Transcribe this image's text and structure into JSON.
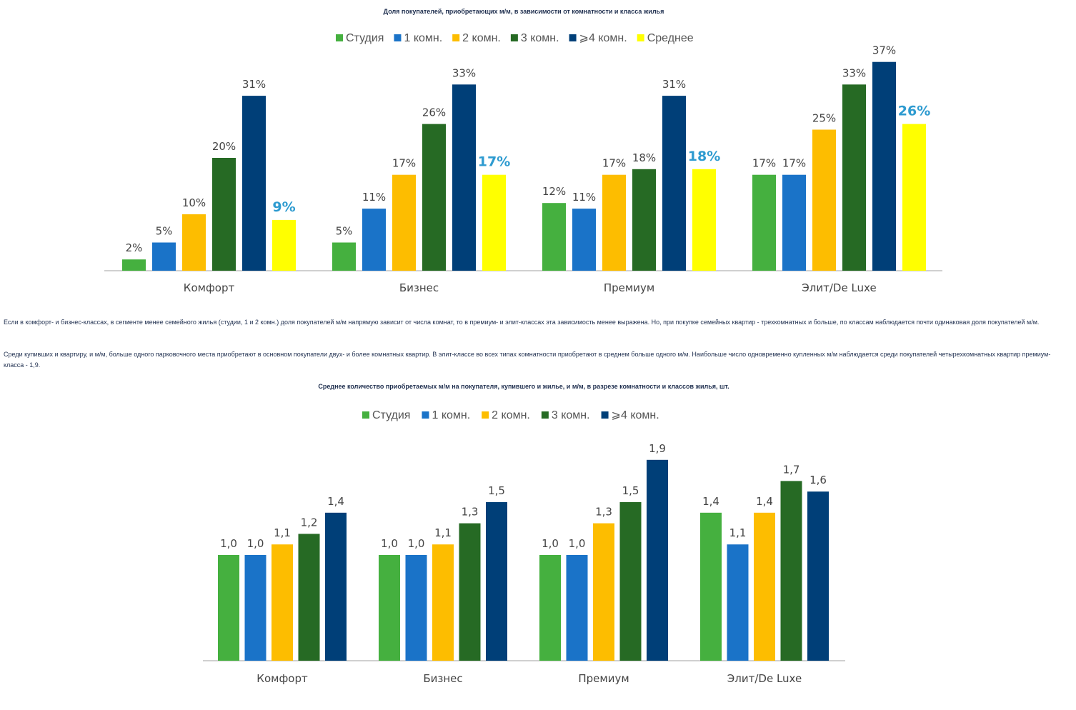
{
  "colors": {
    "studio": "#45b03f",
    "one_room": "#1a73c8",
    "two_room": "#fdbd00",
    "three_room": "#266a24",
    "four_plus": "#003f78",
    "average": "#ffff00",
    "average_label": "#2e9bd0",
    "axis": "#d0d0d0"
  },
  "text": {
    "title1": "Доля покупателей, приобретающих м/м, в зависимости от комнатности и класса жилья",
    "para1": "Если в комфорт- и бизнес-классах, в сегменте менее семейного жилья (студии, 1 и 2 комн.) доля покупателей м/м напрямую зависит от числа комнат, то в премиум- и элит-классах эта зависимость менее выражена. Но, при покупке семейных квартир - трехкомнатных и больше, по классам наблюдается почти одинаковая доля покупателей м/м.",
    "para2": "Среди купивших и квартиру, и м/м, больше одного парковочного места приобретают в основном покупатели двух- и более комнатных квартир. В элит-классе во всех типах комнатности приобретают в среднем больше одного м/м. Наибольше число одновременно купленных м/м наблюдается среди покупателей четырехкомнатных квартир премиум-класса - 1,9.",
    "title2": "Среднее количество приобретаемых м/м на покупателя, купившего и жилье, и м/м, в разрезе комнатности и классов жилья, шт."
  },
  "chart_data": [
    {
      "type": "bar",
      "title": "Доля покупателей, приобретающих м/м, в зависимости от комнатности и класса жилья",
      "categories": [
        "Комфорт",
        "Бизнес",
        "Премиум",
        "Элит/De Luxe"
      ],
      "unit": "%",
      "ylim": [
        0,
        40
      ],
      "legend": "top",
      "grid": false,
      "series": [
        {
          "name": "Студия",
          "values": [
            2,
            5,
            12,
            17
          ],
          "labels": [
            "2%",
            "5%",
            "12%",
            "17%"
          ]
        },
        {
          "name": "1 комн.",
          "values": [
            5,
            11,
            11,
            17
          ],
          "labels": [
            "5%",
            "11%",
            "11%",
            "17%"
          ]
        },
        {
          "name": "2 комн.",
          "values": [
            10,
            17,
            17,
            25
          ],
          "labels": [
            "10%",
            "17%",
            "17%",
            "25%"
          ]
        },
        {
          "name": "3 комн.",
          "values": [
            20,
            26,
            18,
            33
          ],
          "labels": [
            "20%",
            "26%",
            "18%",
            "33%"
          ]
        },
        {
          "name": "⩾4 комн.",
          "values": [
            31,
            33,
            31,
            37
          ],
          "labels": [
            "31%",
            "33%",
            "31%",
            "37%"
          ]
        },
        {
          "name": "Среднее",
          "values": [
            9,
            17,
            18,
            26
          ],
          "labels": [
            "9%",
            "17%",
            "18%",
            "26%"
          ]
        }
      ]
    },
    {
      "type": "bar",
      "title": "Среднее количество приобретаемых м/м на покупателя, купившего и жилье, и м/м, в разрезе комнатности и классов жилья, шт.",
      "categories": [
        "Комфорт",
        "Бизнес",
        "Премиум",
        "Элит/De Luxe"
      ],
      "ylim": [
        0,
        2.0
      ],
      "legend": "top",
      "grid": false,
      "series": [
        {
          "name": "Студия",
          "values": [
            1.0,
            1.0,
            1.0,
            1.4
          ],
          "labels": [
            "1,0",
            "1,0",
            "1,0",
            "1,4"
          ]
        },
        {
          "name": "1 комн.",
          "values": [
            1.0,
            1.0,
            1.0,
            1.1
          ],
          "labels": [
            "1,0",
            "1,0",
            "1,0",
            "1,1"
          ]
        },
        {
          "name": "2 комн.",
          "values": [
            1.1,
            1.1,
            1.3,
            1.4
          ],
          "labels": [
            "1,1",
            "1,1",
            "1,3",
            "1,4"
          ]
        },
        {
          "name": "3 комн.",
          "values": [
            1.2,
            1.3,
            1.5,
            1.7
          ],
          "labels": [
            "1,2",
            "1,3",
            "1,5",
            "1,7"
          ]
        },
        {
          "name": "⩾4 комн.",
          "values": [
            1.4,
            1.5,
            1.9,
            1.6
          ],
          "labels": [
            "1,4",
            "1,5",
            "1,9",
            "1,6"
          ]
        }
      ]
    }
  ]
}
